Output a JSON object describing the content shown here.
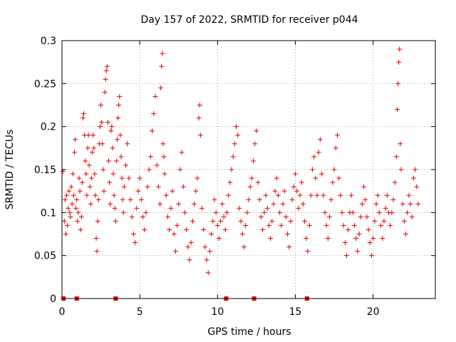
{
  "chart_data": {
    "type": "scatter",
    "title": "Day 157 of 2022, SRMTID for receiver p044",
    "xlabel": "GPS time / hours",
    "ylabel": "SRMTID / TECUs",
    "xlim": [
      0,
      24
    ],
    "ylim": [
      0,
      0.3
    ],
    "x_ticks": [
      0,
      5,
      10,
      15,
      20
    ],
    "y_ticks": [
      0,
      0.05,
      0.1,
      0.15,
      0.2,
      0.25,
      0.3
    ],
    "x_tick_labels": [
      "0",
      "5",
      "10",
      "15",
      "20"
    ],
    "y_tick_labels": [
      "0",
      "0.05",
      "0.1",
      "0.15",
      "0.2",
      "0.25",
      "0.3"
    ],
    "grid": true,
    "marker": "plus",
    "color": "#e00000",
    "series": [
      {
        "name": "SRMTID",
        "points": [
          [
            0.05,
            0.148
          ],
          [
            0.15,
            0.09
          ],
          [
            0.2,
            0.115
          ],
          [
            0.25,
            0.075
          ],
          [
            0.3,
            0.12
          ],
          [
            0.35,
            0.085
          ],
          [
            0.4,
            0.105
          ],
          [
            0.45,
            0.125
          ],
          [
            0.5,
            0.1
          ],
          [
            0.55,
            0.095
          ],
          [
            0.6,
            0.13
          ],
          [
            0.65,
            0.11
          ],
          [
            0.7,
            0.145
          ],
          [
            0.75,
            0.12
          ],
          [
            0.8,
            0.17
          ],
          [
            0.85,
            0.185
          ],
          [
            0.9,
            0.105
          ],
          [
            0.95,
            0.115
          ],
          [
            1.0,
            0.09
          ],
          [
            1.05,
            0.1
          ],
          [
            1.1,
            0.14
          ],
          [
            1.15,
            0.125
          ],
          [
            1.2,
            0.08
          ],
          [
            1.25,
            0.095
          ],
          [
            1.3,
            0.135
          ],
          [
            1.35,
            0.21
          ],
          [
            1.4,
            0.215
          ],
          [
            1.45,
            0.19
          ],
          [
            1.5,
            0.16
          ],
          [
            1.55,
            0.145
          ],
          [
            1.6,
            0.12
          ],
          [
            1.65,
            0.175
          ],
          [
            1.7,
            0.19
          ],
          [
            1.75,
            0.155
          ],
          [
            1.8,
            0.13
          ],
          [
            1.85,
            0.11
          ],
          [
            1.9,
            0.14
          ],
          [
            1.95,
            0.17
          ],
          [
            2.0,
            0.19
          ],
          [
            2.05,
            0.175
          ],
          [
            2.1,
            0.145
          ],
          [
            2.15,
            0.12
          ],
          [
            2.2,
            0.07
          ],
          [
            2.25,
            0.055
          ],
          [
            2.3,
            0.09
          ],
          [
            2.35,
            0.115
          ],
          [
            2.4,
            0.18
          ],
          [
            2.45,
            0.2
          ],
          [
            2.5,
            0.225
          ],
          [
            2.55,
            0.205
          ],
          [
            2.6,
            0.18
          ],
          [
            2.65,
            0.15
          ],
          [
            2.7,
            0.125
          ],
          [
            2.75,
            0.24
          ],
          [
            2.8,
            0.255
          ],
          [
            2.85,
            0.265
          ],
          [
            2.9,
            0.27
          ],
          [
            2.95,
            0.205
          ],
          [
            3.0,
            0.16
          ],
          [
            3.05,
            0.135
          ],
          [
            3.1,
            0.11
          ],
          [
            3.15,
            0.195
          ],
          [
            3.2,
            0.2
          ],
          [
            3.25,
            0.175
          ],
          [
            3.3,
            0.145
          ],
          [
            3.35,
            0.12
          ],
          [
            3.4,
            0.105
          ],
          [
            3.45,
            0.09
          ],
          [
            3.5,
            0.16
          ],
          [
            3.55,
            0.185
          ],
          [
            3.6,
            0.21
          ],
          [
            3.65,
            0.225
          ],
          [
            3.7,
            0.235
          ],
          [
            3.75,
            0.19
          ],
          [
            3.8,
            0.165
          ],
          [
            3.85,
            0.14
          ],
          [
            3.9,
            0.115
          ],
          [
            3.95,
            0.1
          ],
          [
            4.0,
            0.13
          ],
          [
            4.1,
            0.155
          ],
          [
            4.2,
            0.18
          ],
          [
            4.3,
            0.14
          ],
          [
            4.4,
            0.115
          ],
          [
            4.5,
            0.095
          ],
          [
            4.6,
            0.075
          ],
          [
            4.7,
            0.065
          ],
          [
            4.8,
            0.105
          ],
          [
            4.9,
            0.125
          ],
          [
            5.0,
            0.14
          ],
          [
            5.1,
            0.115
          ],
          [
            5.2,
            0.095
          ],
          [
            5.3,
            0.08
          ],
          [
            5.4,
            0.1
          ],
          [
            5.5,
            0.13
          ],
          [
            5.6,
            0.15
          ],
          [
            5.7,
            0.165
          ],
          [
            5.8,
            0.195
          ],
          [
            5.9,
            0.215
          ],
          [
            6.0,
            0.235
          ],
          [
            6.1,
            0.155
          ],
          [
            6.2,
            0.13
          ],
          [
            6.3,
            0.11
          ],
          [
            6.35,
            0.245
          ],
          [
            6.4,
            0.27
          ],
          [
            6.45,
            0.285
          ],
          [
            6.5,
            0.18
          ],
          [
            6.55,
            0.165
          ],
          [
            6.6,
            0.145
          ],
          [
            6.7,
            0.12
          ],
          [
            6.8,
            0.095
          ],
          [
            6.9,
            0.08
          ],
          [
            7.0,
            0.105
          ],
          [
            7.1,
            0.125
          ],
          [
            7.2,
            0.075
          ],
          [
            7.3,
            0.055
          ],
          [
            7.4,
            0.085
          ],
          [
            7.5,
            0.11
          ],
          [
            7.6,
            0.15
          ],
          [
            7.7,
            0.17
          ],
          [
            7.8,
            0.13
          ],
          [
            7.9,
            0.1
          ],
          [
            8.0,
            0.08
          ],
          [
            8.1,
            0.06
          ],
          [
            8.2,
            0.045
          ],
          [
            8.3,
            0.065
          ],
          [
            8.4,
            0.09
          ],
          [
            8.5,
            0.11
          ],
          [
            8.6,
            0.125
          ],
          [
            8.7,
            0.14
          ],
          [
            8.8,
            0.21
          ],
          [
            8.85,
            0.225
          ],
          [
            8.9,
            0.19
          ],
          [
            9.0,
            0.105
          ],
          [
            9.1,
            0.08
          ],
          [
            9.2,
            0.06
          ],
          [
            9.3,
            0.045
          ],
          [
            9.4,
            0.03
          ],
          [
            9.5,
            0.055
          ],
          [
            9.6,
            0.075
          ],
          [
            9.7,
            0.09
          ],
          [
            9.8,
            0.115
          ],
          [
            9.9,
            0.1
          ],
          [
            10.0,
            0.085
          ],
          [
            10.1,
            0.07
          ],
          [
            10.2,
            0.09
          ],
          [
            10.3,
            0.11
          ],
          [
            10.4,
            0.095
          ],
          [
            10.5,
            0.08
          ],
          [
            10.6,
            0.1
          ],
          [
            10.7,
            0.12
          ],
          [
            10.8,
            0.135
          ],
          [
            10.9,
            0.15
          ],
          [
            11.0,
            0.165
          ],
          [
            11.1,
            0.18
          ],
          [
            11.2,
            0.2
          ],
          [
            11.3,
            0.19
          ],
          [
            11.4,
            0.105
          ],
          [
            11.5,
            0.09
          ],
          [
            11.6,
            0.075
          ],
          [
            11.7,
            0.06
          ],
          [
            11.8,
            0.085
          ],
          [
            11.9,
            0.1
          ],
          [
            12.0,
            0.115
          ],
          [
            12.1,
            0.13
          ],
          [
            12.2,
            0.14
          ],
          [
            12.3,
            0.16
          ],
          [
            12.4,
            0.18
          ],
          [
            12.5,
            0.195
          ],
          [
            12.6,
            0.135
          ],
          [
            12.7,
            0.115
          ],
          [
            12.8,
            0.095
          ],
          [
            12.9,
            0.08
          ],
          [
            13.0,
            0.1
          ],
          [
            13.1,
            0.12
          ],
          [
            13.2,
            0.105
          ],
          [
            13.3,
            0.085
          ],
          [
            13.4,
            0.07
          ],
          [
            13.5,
            0.09
          ],
          [
            13.6,
            0.11
          ],
          [
            13.7,
            0.125
          ],
          [
            13.8,
            0.14
          ],
          [
            13.9,
            0.12
          ],
          [
            14.0,
            0.1
          ],
          [
            14.1,
            0.085
          ],
          [
            14.2,
            0.11
          ],
          [
            14.3,
            0.125
          ],
          [
            14.4,
            0.095
          ],
          [
            14.5,
            0.075
          ],
          [
            14.6,
            0.06
          ],
          [
            14.7,
            0.09
          ],
          [
            14.8,
            0.115
          ],
          [
            14.9,
            0.13
          ],
          [
            15.0,
            0.145
          ],
          [
            15.1,
            0.125
          ],
          [
            15.2,
            0.105
          ],
          [
            15.3,
            0.12
          ],
          [
            15.4,
            0.135
          ],
          [
            15.5,
            0.11
          ],
          [
            15.6,
            0.09
          ],
          [
            15.7,
            0.07
          ],
          [
            15.8,
            0.055
          ],
          [
            15.9,
            0.085
          ],
          [
            16.0,
            0.12
          ],
          [
            16.1,
            0.15
          ],
          [
            16.2,
            0.165
          ],
          [
            16.3,
            0.14
          ],
          [
            16.4,
            0.12
          ],
          [
            16.5,
            0.17
          ],
          [
            16.6,
            0.185
          ],
          [
            16.7,
            0.145
          ],
          [
            16.8,
            0.12
          ],
          [
            16.9,
            0.1
          ],
          [
            17.0,
            0.085
          ],
          [
            17.1,
            0.07
          ],
          [
            17.2,
            0.095
          ],
          [
            17.3,
            0.115
          ],
          [
            17.4,
            0.135
          ],
          [
            17.5,
            0.15
          ],
          [
            17.6,
            0.175
          ],
          [
            17.7,
            0.19
          ],
          [
            17.8,
            0.14
          ],
          [
            17.9,
            0.12
          ],
          [
            18.0,
            0.1
          ],
          [
            18.1,
            0.085
          ],
          [
            18.2,
            0.065
          ],
          [
            18.3,
            0.05
          ],
          [
            18.4,
            0.08
          ],
          [
            18.5,
            0.1
          ],
          [
            18.6,
            0.12
          ],
          [
            18.7,
            0.1
          ],
          [
            18.8,
            0.085
          ],
          [
            18.9,
            0.07
          ],
          [
            19.0,
            0.055
          ],
          [
            19.1,
            0.075
          ],
          [
            19.2,
            0.095
          ],
          [
            19.3,
            0.11
          ],
          [
            19.4,
            0.13
          ],
          [
            19.5,
            0.115
          ],
          [
            19.6,
            0.095
          ],
          [
            19.7,
            0.08
          ],
          [
            19.8,
            0.065
          ],
          [
            19.9,
            0.05
          ],
          [
            20.0,
            0.07
          ],
          [
            20.1,
            0.09
          ],
          [
            20.2,
            0.11
          ],
          [
            20.3,
            0.12
          ],
          [
            20.4,
            0.1
          ],
          [
            20.5,
            0.085
          ],
          [
            20.6,
            0.07
          ],
          [
            20.7,
            0.09
          ],
          [
            20.8,
            0.105
          ],
          [
            20.9,
            0.12
          ],
          [
            21.0,
            0.1
          ],
          [
            21.1,
            0.085
          ],
          [
            21.2,
            0.1
          ],
          [
            21.3,
            0.115
          ],
          [
            21.4,
            0.135
          ],
          [
            21.5,
            0.165
          ],
          [
            21.55,
            0.22
          ],
          [
            21.6,
            0.25
          ],
          [
            21.65,
            0.275
          ],
          [
            21.7,
            0.29
          ],
          [
            21.75,
            0.18
          ],
          [
            21.8,
            0.15
          ],
          [
            21.9,
            0.11
          ],
          [
            22.0,
            0.09
          ],
          [
            22.1,
            0.075
          ],
          [
            22.2,
            0.1
          ],
          [
            22.3,
            0.12
          ],
          [
            22.4,
            0.11
          ],
          [
            22.5,
            0.095
          ],
          [
            22.6,
            0.14
          ],
          [
            22.7,
            0.15
          ],
          [
            22.8,
            0.13
          ],
          [
            22.9,
            0.11
          ]
        ]
      }
    ],
    "baseline_markers": {
      "marker": "square",
      "x": [
        0.1,
        0.95,
        3.45,
        10.55,
        12.35,
        15.75
      ],
      "y": 0
    }
  }
}
